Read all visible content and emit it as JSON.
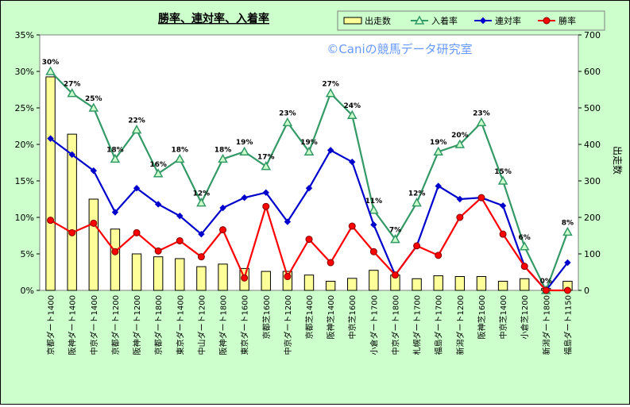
{
  "chart_data": {
    "type": "bar+line",
    "title": "勝率、連対率、入着率",
    "watermark": "©Caniの競馬データ研究室",
    "y2label": "出走数",
    "ylim": [
      0,
      35
    ],
    "y_ticks": [
      "0%",
      "5%",
      "10%",
      "15%",
      "20%",
      "25%",
      "30%",
      "35%"
    ],
    "y2lim": [
      0,
      700
    ],
    "y2_ticks": [
      "0",
      "100",
      "200",
      "300",
      "400",
      "500",
      "600",
      "700"
    ],
    "categories": [
      "京都ダート1400",
      "阪神ダート1400",
      "中京ダート1400",
      "京都ダート1200",
      "阪神ダート1200",
      "京都ダート1800",
      "東京ダート1400",
      "中山ダート1200",
      "阪神ダート1800",
      "東京ダート1600",
      "京都芝1600",
      "中京ダート1200",
      "京都芝1400",
      "阪神芝1400",
      "中京芝1600",
      "小倉ダート1700",
      "中京ダート1800",
      "札幌ダート1700",
      "福島ダート1700",
      "新潟ダート1200",
      "阪神芝1600",
      "中京芝1400",
      "小倉芝1200",
      "新潟ダート1800",
      "福島ダート1150"
    ],
    "bar_series": {
      "name": "出走数",
      "color": "#ffff99",
      "values": [
        585,
        428,
        250,
        168,
        100,
        92,
        87,
        65,
        72,
        60,
        52,
        52,
        42,
        25,
        33,
        55,
        42,
        32,
        40,
        38,
        38,
        25,
        32,
        5,
        25
      ]
    },
    "series": [
      {
        "name": "入着率",
        "color": "#339966",
        "marker": "triangle",
        "values": [
          30,
          27,
          25,
          18,
          22,
          16,
          18,
          12,
          18,
          19,
          17,
          23,
          19,
          27,
          24,
          11,
          7,
          12,
          19,
          20,
          23,
          15,
          6,
          0,
          8
        ]
      },
      {
        "name": "連対率",
        "color": "#0000cc",
        "marker": "diamond",
        "values": [
          20.8,
          18.6,
          16.4,
          10.7,
          14.0,
          11.8,
          10.2,
          7.7,
          11.3,
          12.7,
          13.4,
          9.4,
          14.0,
          19.2,
          17.6,
          9.0,
          2.1,
          6.1,
          14.3,
          12.5,
          12.7,
          11.6,
          3.3,
          0,
          3.8
        ]
      },
      {
        "name": "勝率",
        "color": "#ff0000",
        "marker": "circle",
        "values": [
          9.6,
          7.9,
          9.2,
          5.3,
          7.9,
          5.4,
          6.8,
          4.6,
          8.3,
          1.7,
          11.5,
          1.9,
          7.0,
          3.8,
          8.8,
          5.3,
          2.1,
          6.1,
          4.8,
          10.0,
          12.7,
          7.7,
          3.3,
          0,
          0
        ]
      }
    ],
    "data_labels": [
      "30%",
      "27%",
      "25%",
      "18%",
      "22%",
      "16%",
      "18%",
      "12%",
      "18%",
      "19%",
      "17%",
      "23%",
      "19%",
      "27%",
      "24%",
      "11%",
      "7%",
      "12%",
      "19%",
      "20%",
      "23%",
      "15%",
      "6%",
      "0%",
      "8%"
    ],
    "legend_position": "top-right",
    "grid": false
  }
}
